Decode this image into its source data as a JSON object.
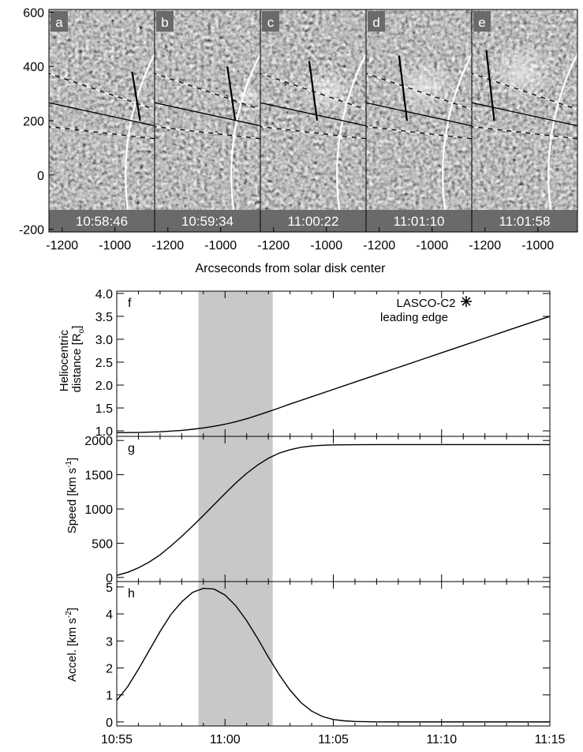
{
  "top_panels": {
    "panels": [
      {
        "letter": "a",
        "time": "10:58:46",
        "seed": 11,
        "blob": null
      },
      {
        "letter": "b",
        "time": "10:59:34",
        "seed": 23,
        "blob": {
          "x": -900,
          "y": 290,
          "rx": 60,
          "ry": 45,
          "strength": 0.55
        }
      },
      {
        "letter": "c",
        "time": "11:00:22",
        "seed": 37,
        "blob": {
          "x": -1000,
          "y": 310,
          "rx": 110,
          "ry": 85,
          "strength": 0.6
        }
      },
      {
        "letter": "d",
        "time": "11:01:10",
        "seed": 41,
        "blob": {
          "x": -1030,
          "y": 330,
          "rx": 130,
          "ry": 100,
          "strength": 0.55
        }
      },
      {
        "letter": "e",
        "time": "11:01:58",
        "seed": 53,
        "blob": {
          "x": -1060,
          "y": 380,
          "rx": 140,
          "ry": 110,
          "strength": 0.55
        }
      }
    ],
    "xaxis": {
      "label": "Arcseconds from solar disk center",
      "range": [
        -1250,
        -850
      ],
      "tick_values": [
        -1200,
        -1000
      ],
      "tick_labels": [
        "-1200",
        "-1000"
      ]
    },
    "yaxis": {
      "range": [
        -210,
        610
      ],
      "tick_values": [
        600,
        400,
        200,
        0,
        -200
      ],
      "tick_labels": [
        "600",
        "400",
        "200",
        "0",
        "-200"
      ]
    },
    "limb_color": "#ffffff",
    "background_gray": "#808080"
  },
  "chart_data": [
    {
      "type": "line",
      "panel": "f",
      "ylabel": "Heliocentric distance [R⊙]",
      "ylabel_line1": "Heliocentric",
      "ylabel_line2": "distance [R",
      "ylabel_sub": "o",
      "ylabel_end": "]",
      "xlim": [
        0,
        20
      ],
      "ylim": [
        0.88,
        4.05
      ],
      "yticks": [
        1.0,
        1.5,
        2.0,
        2.5,
        3.0,
        3.5,
        4.0
      ],
      "ytick_labels": [
        "1.0",
        "1.5",
        "2.0",
        "2.5",
        "3.0",
        "3.5",
        "4.0"
      ],
      "legend": {
        "line1": "LASCO-C2",
        "line2": "leading edge",
        "position": "top-right",
        "marker": "asterisk"
      },
      "series": [
        {
          "x": [
            0,
            1,
            2,
            3,
            3.5,
            4,
            4.5,
            5,
            5.5,
            6,
            6.5,
            7,
            7.5,
            8,
            9,
            10,
            11,
            12,
            13,
            14,
            15,
            16,
            17,
            18,
            19,
            20
          ],
          "y": [
            0.96,
            0.965,
            0.98,
            1.01,
            1.035,
            1.065,
            1.1,
            1.145,
            1.2,
            1.265,
            1.34,
            1.42,
            1.5,
            1.585,
            1.745,
            1.905,
            2.065,
            2.225,
            2.385,
            2.545,
            2.705,
            2.865,
            3.025,
            3.185,
            3.345,
            3.5
          ]
        }
      ]
    },
    {
      "type": "line",
      "panel": "g",
      "ylabel": "Speed [km s⁻¹]",
      "ylabel_main": "Speed [km s",
      "ylabel_sup": "-1",
      "ylabel_end": "]",
      "xlim": [
        0,
        20
      ],
      "ylim": [
        -60,
        2060
      ],
      "yticks": [
        0,
        500,
        1000,
        1500,
        2000
      ],
      "ytick_labels": [
        "0",
        "500",
        "1000",
        "1500",
        "2000"
      ],
      "series": [
        {
          "x": [
            0,
            0.5,
            1,
            1.5,
            2,
            2.5,
            3,
            3.5,
            4,
            4.5,
            5,
            5.5,
            6,
            6.5,
            7,
            7.5,
            8,
            8.5,
            9,
            9.5,
            10,
            11,
            12,
            13,
            14,
            15,
            16,
            17,
            18,
            19,
            20
          ],
          "y": [
            30,
            75,
            140,
            225,
            330,
            460,
            600,
            750,
            905,
            1065,
            1225,
            1380,
            1520,
            1640,
            1740,
            1815,
            1865,
            1900,
            1920,
            1930,
            1935,
            1938,
            1940,
            1940,
            1940,
            1940,
            1940,
            1940,
            1940,
            1940,
            1940
          ]
        }
      ]
    },
    {
      "type": "line",
      "panel": "h",
      "ylabel": "Accel. [km s⁻²]",
      "ylabel_main": "Accel. [km s",
      "ylabel_sup": "-2",
      "ylabel_end": "]",
      "xlim": [
        0,
        20
      ],
      "ylim": [
        -0.15,
        5.2
      ],
      "yticks": [
        0,
        1,
        2,
        3,
        4,
        5
      ],
      "ytick_labels": [
        "0",
        "1",
        "2",
        "3",
        "4",
        "5"
      ],
      "xticks": [
        0,
        5,
        10,
        15,
        20
      ],
      "xtick_labels": [
        "10:55",
        "11:00",
        "11:05",
        "11:10",
        "11:15"
      ],
      "series": [
        {
          "x": [
            0,
            0.5,
            1,
            1.5,
            2,
            2.5,
            3,
            3.5,
            4,
            4.5,
            5,
            5.5,
            6,
            6.5,
            7,
            7.5,
            8,
            8.5,
            9,
            9.5,
            10,
            10.5,
            11,
            12,
            13,
            14,
            15,
            16,
            17,
            18,
            19,
            20
          ],
          "y": [
            0.8,
            1.3,
            1.95,
            2.65,
            3.35,
            3.98,
            4.45,
            4.8,
            4.95,
            4.92,
            4.7,
            4.3,
            3.75,
            3.1,
            2.4,
            1.75,
            1.18,
            0.72,
            0.4,
            0.2,
            0.09,
            0.04,
            0.015,
            0.003,
            0,
            0,
            0,
            0,
            0,
            0,
            0,
            0
          ]
        }
      ]
    }
  ],
  "shaded_interval": {
    "x": [
      3.77,
      7.2
    ],
    "color": "#c8c8c8"
  },
  "ink_color": "#000000"
}
